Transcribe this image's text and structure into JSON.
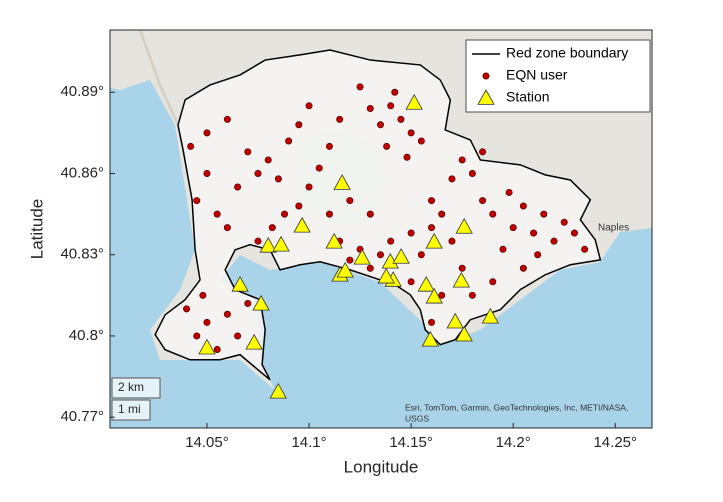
{
  "chart_data": {
    "type": "scatter",
    "xlabel": "Longitude",
    "ylabel": "Latitude",
    "xlim": [
      14.0025,
      14.268
    ],
    "ylim": [
      40.766,
      40.913
    ],
    "xticks": [
      {
        "value": 14.05,
        "label": "14.05°"
      },
      {
        "value": 14.1,
        "label": "14.1°"
      },
      {
        "value": 14.15,
        "label": "14.15°"
      },
      {
        "value": 14.2,
        "label": "14.2°"
      },
      {
        "value": 14.25,
        "label": "14.25°"
      }
    ],
    "yticks": [
      {
        "value": 40.77,
        "label": "40.77°"
      },
      {
        "value": 40.8,
        "label": "40.8°"
      },
      {
        "value": 40.83,
        "label": "40.83°"
      },
      {
        "value": 40.86,
        "label": "40.86°"
      },
      {
        "value": 40.89,
        "label": "40.89°"
      }
    ],
    "legend": "upper right",
    "series": [
      {
        "name": "Red zone boundary",
        "marker": "line",
        "color": "#000000",
        "x": [
          14.0358,
          14.0393,
          14.0515,
          14.0662,
          14.0785,
          14.0956,
          14.1103,
          14.13,
          14.1545,
          14.1643,
          14.1692,
          14.1667,
          14.179,
          14.1839,
          14.2035,
          14.2157,
          14.228,
          14.2378,
          14.2329,
          14.2402,
          14.2427,
          14.228,
          14.2157,
          14.2035,
          14.1937,
          14.179,
          14.1716,
          14.1643,
          14.1569,
          14.1545,
          14.1496,
          14.1422,
          14.1349,
          14.1201,
          14.1054,
          14.0956,
          14.0858,
          14.0809,
          14.0711,
          14.0638,
          14.0589,
          14.0638,
          14.076,
          14.0785,
          14.077,
          14.0809,
          14.075,
          14.0662,
          14.0564,
          14.0417,
          14.0295,
          14.0246,
          14.0295,
          14.0393,
          14.0466,
          14.0442,
          14.0427,
          14.0383,
          14.0358
        ],
        "y": [
          40.8779,
          40.8872,
          40.8927,
          40.8964,
          40.9019,
          40.9038,
          40.9056,
          40.9019,
          40.9001,
          40.8945,
          40.8872,
          40.8761,
          40.8724,
          40.865,
          40.8632,
          40.8595,
          40.8576,
          40.8503,
          40.8429,
          40.8355,
          40.8281,
          40.8263,
          40.8226,
          40.8171,
          40.8097,
          40.806,
          40.7986,
          40.7968,
          40.8023,
          40.8097,
          40.8152,
          40.8189,
          40.8207,
          40.8244,
          40.8274,
          40.8263,
          40.8244,
          40.8318,
          40.8337,
          40.8318,
          40.8244,
          40.8171,
          40.8134,
          40.8023,
          40.7894,
          40.7838,
          40.7875,
          40.7931,
          40.7912,
          40.7912,
          40.7949,
          40.8005,
          40.8078,
          40.8134,
          40.8207,
          40.8318,
          40.8503,
          40.8687,
          40.8779
        ]
      },
      {
        "name": "EQN user",
        "marker": "circle",
        "color": "#c00000",
        "x": [
          14.14,
          14.145,
          14.135,
          14.15,
          14.142,
          14.13,
          14.155,
          14.138,
          14.125,
          14.148,
          14.19,
          14.2,
          14.21,
          14.205,
          14.215,
          14.22,
          14.195,
          14.225,
          14.185,
          14.212,
          14.198,
          14.23,
          14.175,
          14.18,
          14.17,
          14.185,
          14.12,
          14.125,
          14.13,
          14.135,
          14.115,
          14.14,
          14.15,
          14.155,
          14.075,
          14.08,
          14.085,
          14.07,
          14.09,
          14.065,
          14.045,
          14.05,
          14.055,
          14.06,
          14.065,
          14.04,
          14.07,
          14.048,
          14.075,
          14.082,
          14.088,
          14.095,
          14.1,
          14.105,
          14.11,
          14.1,
          14.095,
          14.06,
          14.05,
          14.115,
          14.16,
          14.165,
          14.17,
          14.16,
          14.175,
          14.18,
          14.165,
          14.16,
          14.15,
          14.06,
          14.055,
          14.045,
          14.05,
          14.042,
          14.13,
          14.12,
          14.11,
          14.235,
          14.205,
          14.19
        ],
        "y": [
          40.885,
          40.88,
          40.878,
          40.875,
          40.89,
          40.884,
          40.872,
          40.87,
          40.892,
          40.866,
          40.845,
          40.84,
          40.838,
          40.848,
          40.845,
          40.835,
          40.832,
          40.842,
          40.85,
          40.83,
          40.853,
          40.838,
          40.865,
          40.86,
          40.858,
          40.868,
          40.828,
          40.832,
          40.825,
          40.83,
          40.835,
          40.835,
          40.838,
          40.83,
          40.86,
          40.865,
          40.858,
          40.868,
          40.872,
          40.855,
          40.8,
          40.805,
          40.795,
          40.808,
          40.8,
          40.81,
          40.812,
          40.815,
          40.835,
          40.84,
          40.845,
          40.848,
          40.855,
          40.862,
          40.87,
          40.885,
          40.878,
          40.88,
          40.875,
          40.88,
          40.85,
          40.845,
          40.835,
          40.84,
          40.825,
          40.815,
          40.815,
          40.805,
          40.82,
          40.84,
          40.845,
          40.85,
          40.86,
          40.87,
          40.845,
          40.85,
          40.845,
          40.832,
          40.825,
          40.82
        ]
      },
      {
        "name": "Station",
        "marker": "triangle",
        "color": "#ffff00",
        "x": [
          14.1515,
          14.1162,
          14.0966,
          14.08,
          14.0863,
          14.1123,
          14.1152,
          14.1177,
          14.126,
          14.1398,
          14.1451,
          14.1412,
          14.1378,
          14.1613,
          14.1574,
          14.1613,
          14.176,
          14.1746,
          14.1716,
          14.1888,
          14.1594,
          14.176,
          14.0662,
          14.0765,
          14.0731,
          14.05,
          14.0849
        ],
        "y": [
          40.8861,
          40.8565,
          40.8407,
          40.8333,
          40.8337,
          40.8348,
          40.8226,
          40.8241,
          40.8289,
          40.8274,
          40.8292,
          40.8207,
          40.8219,
          40.8348,
          40.8189,
          40.8145,
          40.8403,
          40.8204,
          40.8053,
          40.8071,
          40.7986,
          40.8005,
          40.8189,
          40.8119,
          40.7975,
          40.7957,
          40.7794
        ]
      }
    ],
    "basemap": {
      "attribution": [
        "Esri, TomTom, Garmin, GeoTechnologies, Inc, METI/NASA,",
        "USGS"
      ],
      "scale_bars": [
        "2 km",
        "1 mi"
      ],
      "place": "Naples"
    }
  }
}
